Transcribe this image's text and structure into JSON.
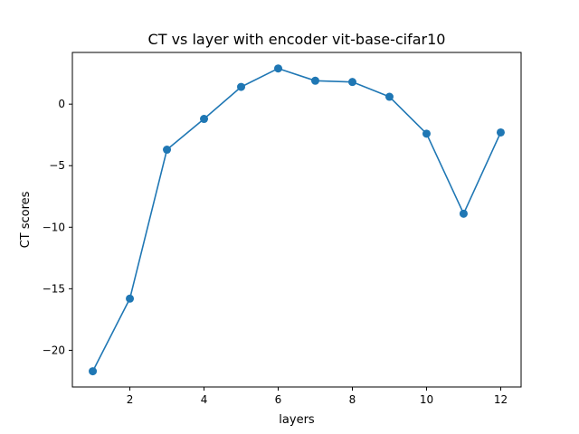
{
  "chart_data": {
    "type": "line",
    "title": "CT vs layer with encoder vit-base-cifar10",
    "xlabel": "layers",
    "ylabel": "CT scores",
    "x": [
      1,
      2,
      3,
      4,
      5,
      6,
      7,
      8,
      9,
      10,
      11,
      12
    ],
    "series": [
      {
        "values": [
          -21.7,
          -15.8,
          -3.7,
          -1.2,
          1.4,
          2.9,
          1.9,
          1.8,
          0.6,
          -2.4,
          -8.9,
          -2.3
        ],
        "color": "#1f77b4",
        "marker": "circle"
      }
    ],
    "xlim": [
      0.45,
      12.55
    ],
    "ylim": [
      -22.98,
      4.2
    ],
    "x_ticks": [
      2,
      4,
      6,
      8,
      10,
      12
    ],
    "y_ticks": [
      -20,
      -15,
      -10,
      -5,
      0
    ],
    "y_tick_labels": [
      "−20",
      "−15",
      "−10",
      "−5",
      "0"
    ],
    "grid": false,
    "legend": "none"
  }
}
